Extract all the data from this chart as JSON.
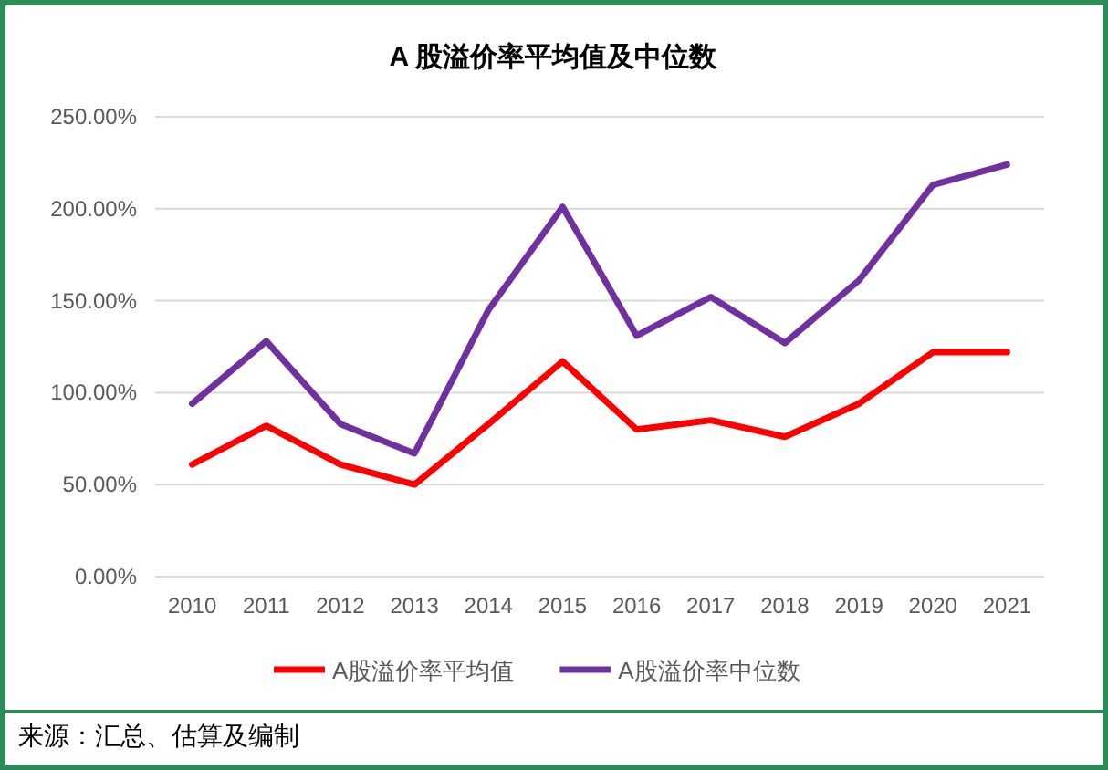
{
  "chart_data": {
    "type": "line",
    "title": "A 股溢价率平均值及中位数",
    "categories": [
      "2010",
      "2011",
      "2012",
      "2013",
      "2014",
      "2015",
      "2016",
      "2017",
      "2018",
      "2019",
      "2020",
      "2021"
    ],
    "series": [
      {
        "name": "A股溢价率平均值",
        "color": "#ff0000",
        "values": [
          61,
          82,
          61,
          50,
          83,
          117,
          80,
          85,
          76,
          94,
          122,
          122
        ]
      },
      {
        "name": "A股溢价率中位数",
        "color": "#7030a0",
        "values": [
          94,
          128,
          83,
          67,
          145,
          201,
          131,
          152,
          127,
          161,
          213,
          224
        ]
      }
    ],
    "ylim": [
      0,
      250
    ],
    "yticks": [
      {
        "value": 0,
        "label": "0.00%"
      },
      {
        "value": 50,
        "label": "50.00%"
      },
      {
        "value": 100,
        "label": "100.00%"
      },
      {
        "value": 150,
        "label": "150.00%"
      },
      {
        "value": 200,
        "label": "200.00%"
      },
      {
        "value": 250,
        "label": "250.00%"
      }
    ],
    "grid": "y",
    "legend": "bottom",
    "marker": "none",
    "line_style": "solid",
    "annotations": [
      "来源：汇总、估算及编制"
    ]
  }
}
